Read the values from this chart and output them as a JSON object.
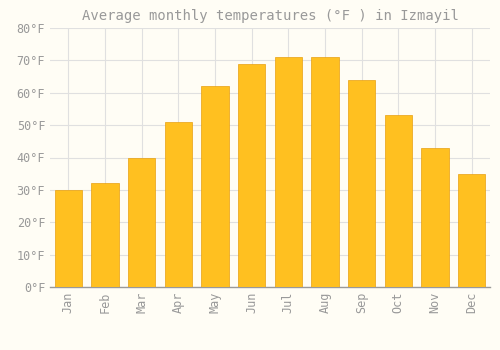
{
  "title": "Average monthly temperatures (°F ) in Izmayil",
  "months": [
    "Jan",
    "Feb",
    "Mar",
    "Apr",
    "May",
    "Jun",
    "Jul",
    "Aug",
    "Sep",
    "Oct",
    "Nov",
    "Dec"
  ],
  "values": [
    30,
    32,
    40,
    51,
    62,
    69,
    71,
    71,
    64,
    53,
    43,
    35
  ],
  "bar_color": "#FFC020",
  "bar_edge_color": "#E8A010",
  "background_color": "#FFFDF5",
  "grid_color": "#E0E0E0",
  "text_color": "#999999",
  "ylim": [
    0,
    80
  ],
  "yticks": [
    0,
    10,
    20,
    30,
    40,
    50,
    60,
    70,
    80
  ],
  "title_fontsize": 10,
  "tick_fontsize": 8.5,
  "font_family": "monospace",
  "bar_width": 0.75
}
